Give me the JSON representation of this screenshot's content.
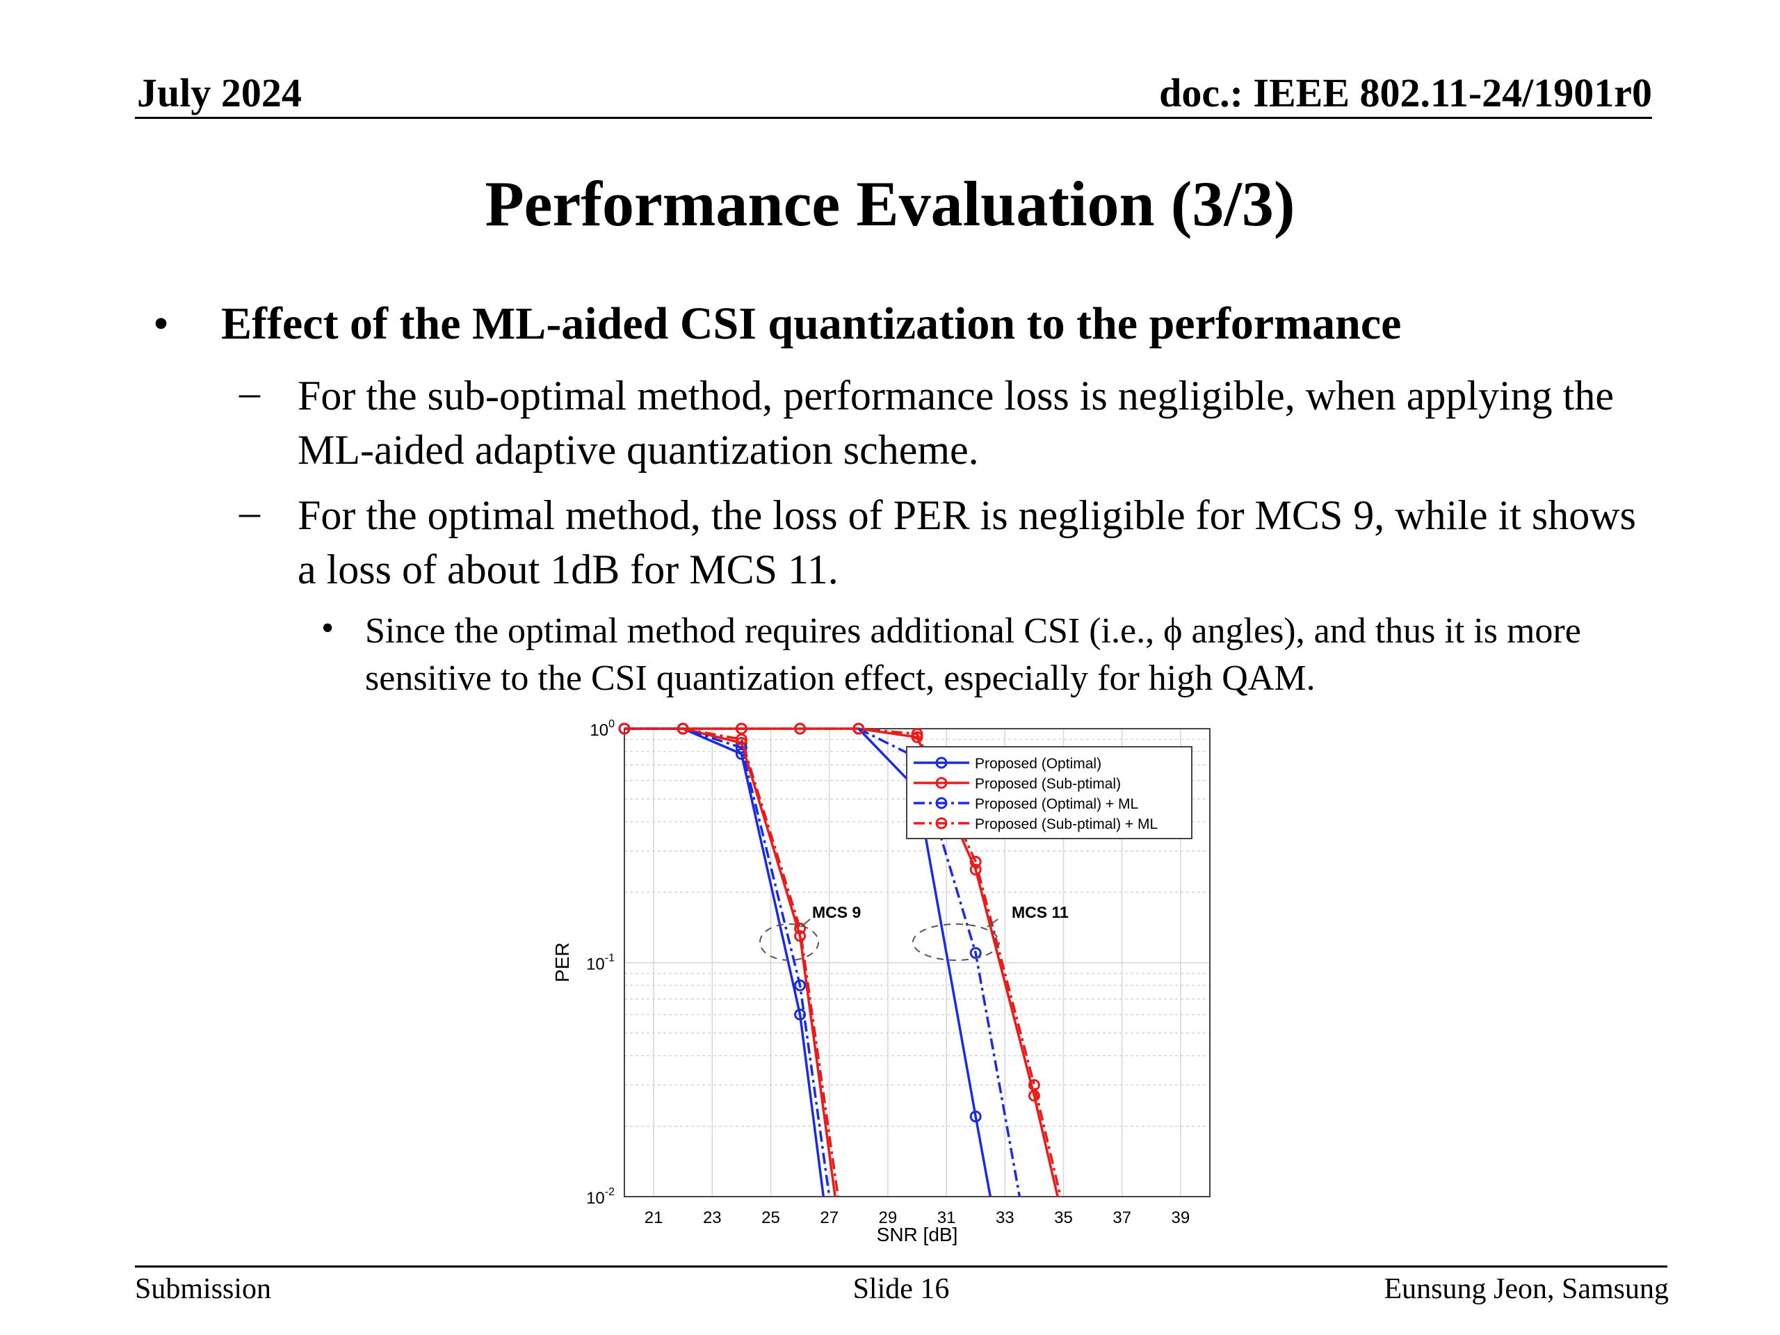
{
  "header": {
    "date": "July 2024",
    "doc": "doc.: IEEE 802.11-24/1901r0"
  },
  "title": "Performance Evaluation (3/3)",
  "bullets": {
    "main": "Effect of the ML-aided CSI quantization to the performance",
    "sub1": "For the sub-optimal method, performance loss is negligible, when applying the ML-aided adaptive quantization scheme.",
    "sub2": "For the optimal method, the loss of PER is negligible for MCS 9, while it shows a loss of about 1dB for MCS 11.",
    "subsub": "Since the optimal method requires additional CSI (i.e., ϕ angles), and thus it is more sensitive to the CSI quantization effect, especially for high QAM."
  },
  "footer": {
    "left": "Submission",
    "center": "Slide 16",
    "right": "Eunsung Jeon, Samsung"
  },
  "chart_data": {
    "type": "line",
    "xlabel": "SNR [dB]",
    "ylabel": "PER",
    "xlim": [
      20,
      40
    ],
    "ylim": [
      0.01,
      1
    ],
    "yscale": "log",
    "xticks": [
      21,
      23,
      25,
      27,
      29,
      31,
      33,
      35,
      37,
      39
    ],
    "yticks": [
      {
        "value": 1,
        "base": "10",
        "exp": "0"
      },
      {
        "value": 0.1,
        "base": "10",
        "exp": "-1"
      },
      {
        "value": 0.01,
        "base": "10",
        "exp": "-2"
      }
    ],
    "grid": true,
    "legend_position": "top-right",
    "annotations": [
      "MCS 9",
      "MCS 11"
    ],
    "series": [
      {
        "name": "Proposed (Optimal)",
        "color": "#1a2be0",
        "dash": "solid",
        "points": [
          [
            20,
            1
          ],
          [
            22,
            1
          ],
          [
            24,
            0.78
          ],
          [
            26,
            0.06
          ],
          [
            26.8,
            0.01
          ]
        ],
        "points2": [
          [
            28,
            1
          ],
          [
            30,
            0.55
          ],
          [
            32,
            0.022
          ],
          [
            32.5,
            0.01
          ]
        ]
      },
      {
        "name": "Proposed (Sub-ptimal)",
        "color": "#e81c1c",
        "dash": "solid",
        "points": [
          [
            20,
            1
          ],
          [
            22,
            1
          ],
          [
            24,
            1
          ],
          [
            26,
            1
          ],
          [
            28,
            1
          ],
          [
            30,
            0.92
          ],
          [
            32,
            0.25
          ],
          [
            34,
            0.027
          ],
          [
            34.8,
            0.01
          ]
        ],
        "points2": [
          [
            22,
            1
          ],
          [
            24,
            0.87
          ],
          [
            26,
            0.13
          ],
          [
            27.2,
            0.01
          ]
        ]
      },
      {
        "name": "Proposed (Optimal) + ML",
        "color": "#1a2be0",
        "dash": "dashdot",
        "points": [
          [
            20,
            1
          ],
          [
            22,
            1
          ],
          [
            24,
            0.83
          ],
          [
            26,
            0.08
          ],
          [
            27,
            0.01
          ]
        ],
        "points2": [
          [
            28,
            1
          ],
          [
            30,
            0.75
          ],
          [
            32,
            0.11
          ],
          [
            33.5,
            0.01
          ]
        ]
      },
      {
        "name": "Proposed (Sub-ptimal) + ML",
        "color": "#e81c1c",
        "dash": "dashdot",
        "points": [
          [
            20,
            1
          ],
          [
            22,
            1
          ],
          [
            24,
            1
          ],
          [
            26,
            1
          ],
          [
            28,
            1
          ],
          [
            30,
            0.95
          ],
          [
            32,
            0.27
          ],
          [
            34,
            0.03
          ],
          [
            34.9,
            0.01
          ]
        ],
        "points2": [
          [
            22,
            1
          ],
          [
            24,
            0.9
          ],
          [
            26,
            0.14
          ],
          [
            27.3,
            0.01
          ]
        ]
      }
    ]
  }
}
